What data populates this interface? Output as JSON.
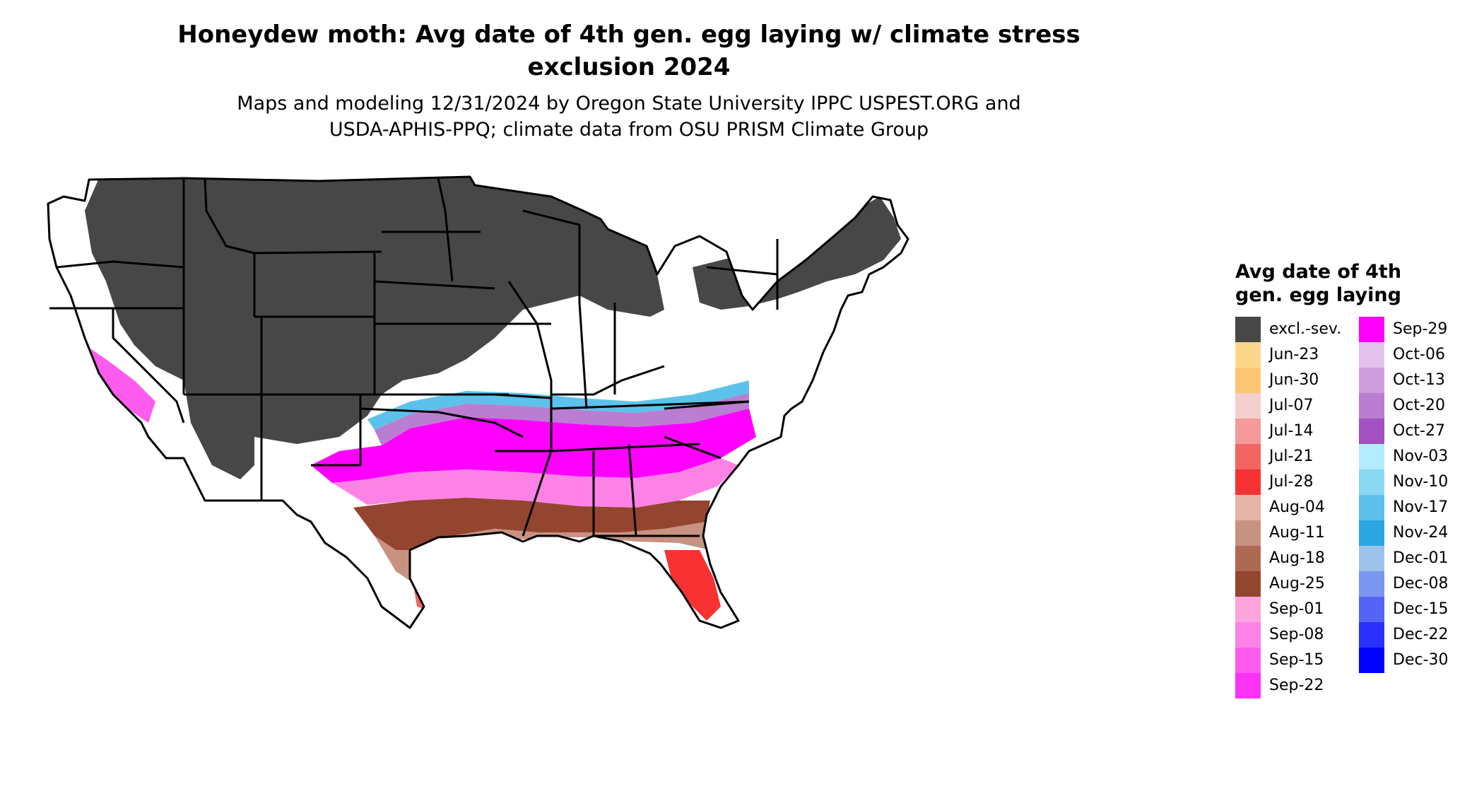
{
  "header": {
    "title_line1": "Honeydew moth: Avg date of 4th gen. egg laying w/ climate stress",
    "title_line2": "exclusion 2024",
    "subtitle_line1": "Maps and modeling 12/31/2024 by Oregon State University IPPC USPEST.ORG and",
    "subtitle_line2": "USDA-APHIS-PPQ; climate data from OSU PRISM Climate Group"
  },
  "legend": {
    "title_line1": "Avg date of 4th",
    "title_line2": "gen. egg laying",
    "column1": [
      {
        "label": "excl.-sev.",
        "color": "#474747"
      },
      {
        "label": "Jun-23",
        "color": "#fdd68c"
      },
      {
        "label": "Jun-30",
        "color": "#fec576"
      },
      {
        "label": "Jul-07",
        "color": "#f5cece"
      },
      {
        "label": "Jul-14",
        "color": "#f49a9a"
      },
      {
        "label": "Jul-21",
        "color": "#f36464"
      },
      {
        "label": "Jul-28",
        "color": "#f83232"
      },
      {
        "label": "Aug-04",
        "color": "#e4b4a8"
      },
      {
        "label": "Aug-11",
        "color": "#c89282"
      },
      {
        "label": "Aug-18",
        "color": "#ad6954"
      },
      {
        "label": "Aug-25",
        "color": "#944530"
      },
      {
        "label": "Sep-01",
        "color": "#fca5dc"
      },
      {
        "label": "Sep-08",
        "color": "#fd82e6"
      },
      {
        "label": "Sep-15",
        "color": "#fd5cef"
      },
      {
        "label": "Sep-22",
        "color": "#fd32f5"
      }
    ],
    "column2": [
      {
        "label": "Sep-29",
        "color": "#ff00ff"
      },
      {
        "label": "Oct-06",
        "color": "#e2c2ea"
      },
      {
        "label": "Oct-13",
        "color": "#d09ddc"
      },
      {
        "label": "Oct-20",
        "color": "#b97dd1"
      },
      {
        "label": "Oct-27",
        "color": "#a151c0"
      },
      {
        "label": "Nov-03",
        "color": "#b4ecfd"
      },
      {
        "label": "Nov-10",
        "color": "#8bd8f3"
      },
      {
        "label": "Nov-17",
        "color": "#5cc2ec"
      },
      {
        "label": "Nov-24",
        "color": "#2aa6e0"
      },
      {
        "label": "Dec-01",
        "color": "#9ec3ea"
      },
      {
        "label": "Dec-08",
        "color": "#7a96ee"
      },
      {
        "label": "Dec-15",
        "color": "#5664f6"
      },
      {
        "label": "Dec-22",
        "color": "#2a30fb"
      },
      {
        "label": "Dec-30",
        "color": "#0000ff"
      }
    ]
  }
}
